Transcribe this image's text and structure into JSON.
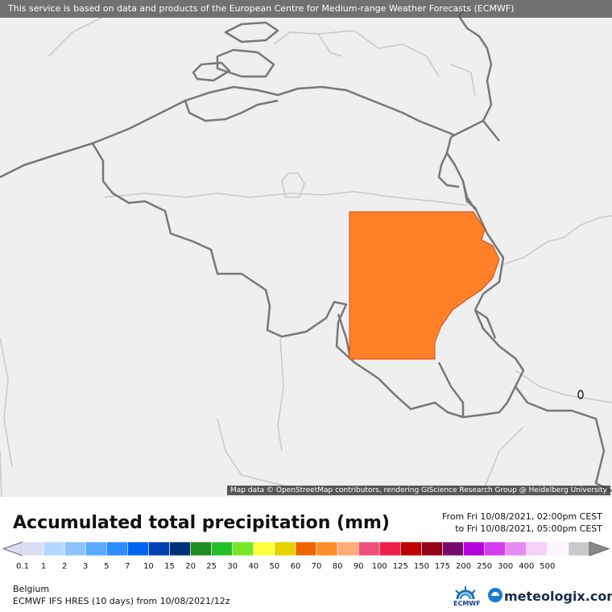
{
  "header": {
    "notice": "This service is based on data and products of the European Centre for Medium-range Weather Forecasts (ECMWF)"
  },
  "map": {
    "attribution": "Map data © OpenStreetMap contributors, rendering GIScience Research Group @ Heidelberg University",
    "precip_fill_color": "#ff8027",
    "background_color": "#efefef",
    "border_color": "#777777"
  },
  "legend": {
    "title": "Accumulated total precipitation (mm)",
    "from_label": "From Fri 10/08/2021, 02:00pm CEST",
    "to_label": "to Fri 10/08/2021, 05:00pm CEST",
    "bins": [
      {
        "label": "0.1",
        "color": "#dcdcf5"
      },
      {
        "label": "1",
        "color": "#b4d7ff"
      },
      {
        "label": "2",
        "color": "#8cc3ff"
      },
      {
        "label": "3",
        "color": "#5aaaff"
      },
      {
        "label": "5",
        "color": "#2d8cff"
      },
      {
        "label": "7",
        "color": "#0064f0"
      },
      {
        "label": "10",
        "color": "#0041b4"
      },
      {
        "label": "15",
        "color": "#003278"
      },
      {
        "label": "20",
        "color": "#1e8c1e"
      },
      {
        "label": "25",
        "color": "#28be28"
      },
      {
        "label": "30",
        "color": "#78e628"
      },
      {
        "label": "40",
        "color": "#ffff3c"
      },
      {
        "label": "50",
        "color": "#e6d200"
      },
      {
        "label": "60",
        "color": "#f06400"
      },
      {
        "label": "70",
        "color": "#ff8c28"
      },
      {
        "label": "80",
        "color": "#ffaa78"
      },
      {
        "label": "90",
        "color": "#f05078"
      },
      {
        "label": "100",
        "color": "#ee1e4a"
      },
      {
        "label": "125",
        "color": "#be0000"
      },
      {
        "label": "150",
        "color": "#960014"
      },
      {
        "label": "175",
        "color": "#780a6e"
      },
      {
        "label": "200",
        "color": "#b400dc"
      },
      {
        "label": "250",
        "color": "#d23cf0"
      },
      {
        "label": "300",
        "color": "#e68cf5"
      },
      {
        "label": "400",
        "color": "#f5d2fa"
      },
      {
        "label": "500",
        "color": "#fff5ff"
      },
      {
        "label": "",
        "color": "#c8c8c8"
      }
    ]
  },
  "footer": {
    "region": "Belgium",
    "model": "ECMWF IFS HRES (10 days) from 10/08/2021/12z",
    "ecmwf_label": "ECMWF",
    "brand": "meteologix.com"
  }
}
